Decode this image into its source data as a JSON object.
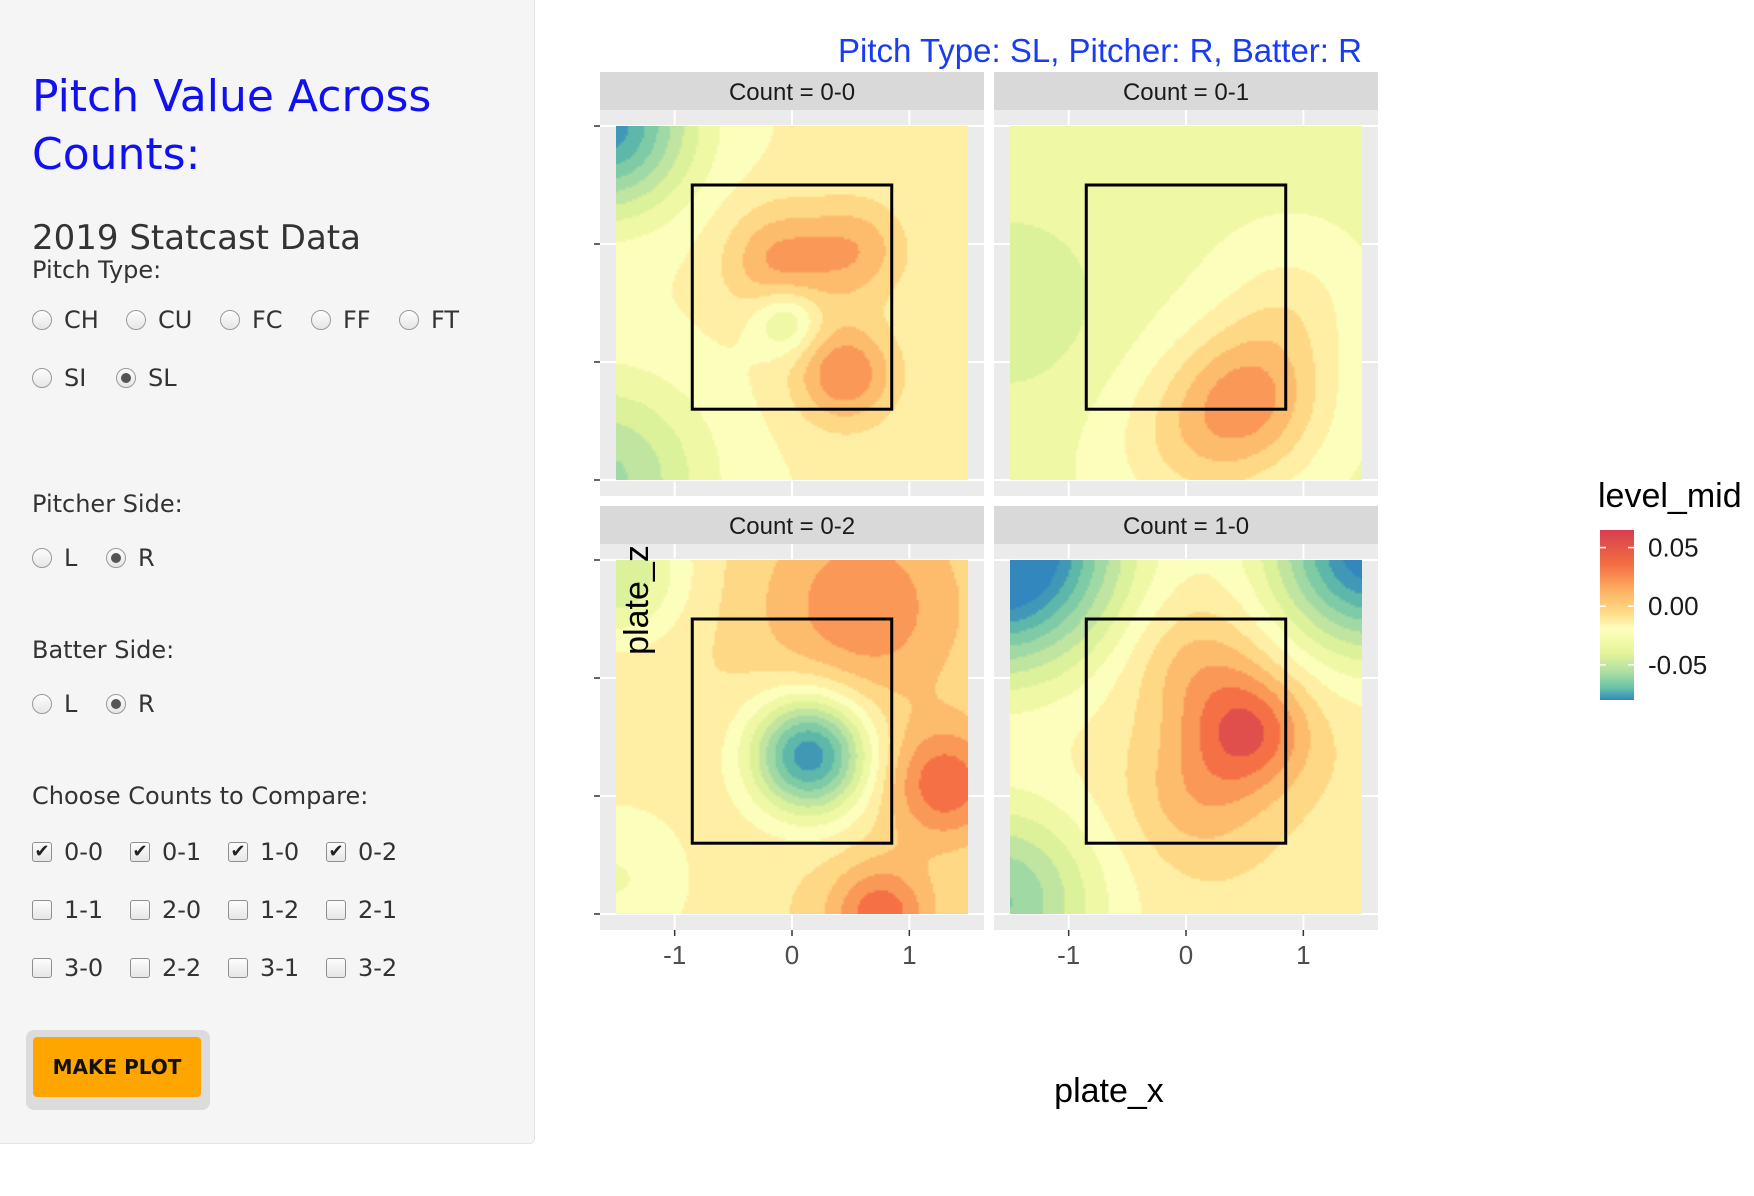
{
  "sidebar": {
    "title": "Pitch Value Across Counts:",
    "subtitle": "2019 Statcast Data",
    "pitch_type": {
      "label": "Pitch Type:",
      "options": [
        "CH",
        "CU",
        "FC",
        "FF",
        "FT",
        "SI",
        "SL"
      ],
      "selected": "SL"
    },
    "pitcher_side": {
      "label": "Pitcher Side:",
      "options": [
        "L",
        "R"
      ],
      "selected": "R"
    },
    "batter_side": {
      "label": "Batter Side:",
      "options": [
        "L",
        "R"
      ],
      "selected": "R"
    },
    "counts": {
      "label": "Choose Counts to Compare:",
      "options": [
        "0-0",
        "0-1",
        "1-0",
        "0-2",
        "1-1",
        "2-0",
        "1-2",
        "2-1",
        "3-0",
        "2-2",
        "3-1",
        "3-2"
      ],
      "checked": [
        "0-0",
        "0-1",
        "1-0",
        "0-2"
      ]
    },
    "button_label": "MAKE PLOT"
  },
  "chart_data": {
    "type": "heatmap",
    "title": "Pitch Type: SL, Pitcher: R, Batter: R",
    "xlabel": "plate_x",
    "ylabel": "plate_z",
    "xlim": [
      -1.5,
      1.5
    ],
    "ylim": [
      1,
      4
    ],
    "x_ticks": [
      -1,
      0,
      1
    ],
    "y_ticks": [
      1,
      2,
      3,
      4
    ],
    "strike_zone": {
      "x": [
        -0.85,
        0.85
      ],
      "z": [
        1.6,
        3.5
      ]
    },
    "legend": {
      "title": "level_mid",
      "ticks": [
        0.05,
        0.0,
        -0.05
      ],
      "range": [
        -0.08,
        0.065
      ],
      "placement": "right"
    },
    "facets": [
      {
        "label": "Count = 0-0",
        "base": 0.004,
        "peaks": [
          {
            "x": 0.45,
            "z": 1.9,
            "amp": 0.04,
            "s": 0.3
          },
          {
            "x": -0.1,
            "z": 2.85,
            "amp": 0.032,
            "s": 0.33
          },
          {
            "x": 0.55,
            "z": 2.95,
            "amp": 0.026,
            "s": 0.3
          },
          {
            "x": -0.05,
            "z": 2.35,
            "amp": -0.03,
            "s": 0.2
          },
          {
            "x": -1.6,
            "z": 4.0,
            "amp": -0.08,
            "s": 0.5
          },
          {
            "x": -1.6,
            "z": 1.0,
            "amp": -0.045,
            "s": 0.6
          }
        ]
      },
      {
        "label": "Count = 0-1",
        "base": -0.01,
        "peaks": [
          {
            "x": 0.55,
            "z": 1.7,
            "amp": 0.042,
            "s": 0.45
          },
          {
            "x": 0.0,
            "z": 1.3,
            "amp": 0.02,
            "s": 0.5
          },
          {
            "x": 0.9,
            "z": 2.5,
            "amp": 0.015,
            "s": 0.4
          },
          {
            "x": -1.5,
            "z": 2.5,
            "amp": -0.015,
            "s": 0.6
          }
        ]
      },
      {
        "label": "Count = 0-2",
        "base": 0.012,
        "peaks": [
          {
            "x": 0.15,
            "z": 2.35,
            "amp": -0.09,
            "s": 0.35
          },
          {
            "x": 1.3,
            "z": 2.1,
            "amp": 0.04,
            "s": 0.35
          },
          {
            "x": 0.75,
            "z": 1.0,
            "amp": 0.04,
            "s": 0.3
          },
          {
            "x": 0.6,
            "z": 3.6,
            "amp": 0.03,
            "s": 0.6
          },
          {
            "x": -1.5,
            "z": 3.9,
            "amp": -0.04,
            "s": 0.4
          },
          {
            "x": -1.5,
            "z": 1.3,
            "amp": -0.02,
            "s": 0.5
          }
        ]
      },
      {
        "label": "Count = 1-0",
        "base": 0.01,
        "peaks": [
          {
            "x": 0.55,
            "z": 2.55,
            "amp": 0.042,
            "s": 0.35
          },
          {
            "x": 0.1,
            "z": 3.1,
            "amp": 0.02,
            "s": 0.4
          },
          {
            "x": 0.1,
            "z": 2.0,
            "amp": 0.02,
            "s": 0.4
          },
          {
            "x": -1.6,
            "z": 4.1,
            "amp": -0.12,
            "s": 0.7
          },
          {
            "x": 1.6,
            "z": 4.1,
            "amp": -0.1,
            "s": 0.6
          },
          {
            "x": -1.6,
            "z": 1.1,
            "amp": -0.06,
            "s": 0.6
          }
        ]
      }
    ]
  }
}
